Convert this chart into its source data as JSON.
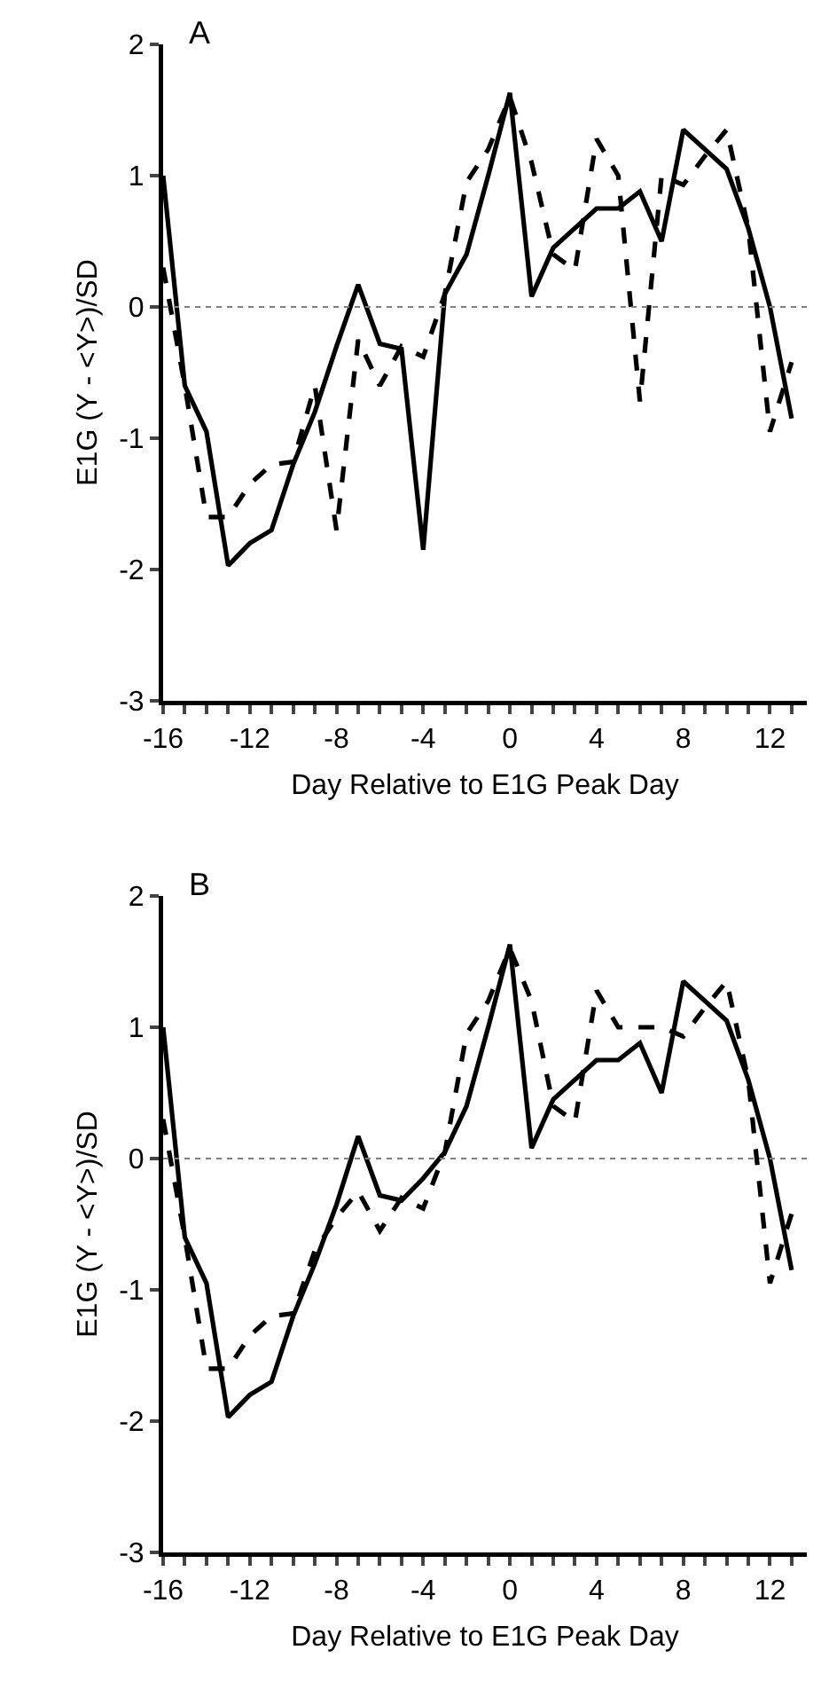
{
  "chart_data": [
    {
      "type": "line",
      "title": "A",
      "xlabel": "Day Relative to E1G Peak Day",
      "ylabel": "E1G (Y - <Y>)/SD",
      "x": [
        -16,
        -15,
        -14,
        -13,
        -12,
        -11,
        -10,
        -9,
        -8,
        -7,
        -6,
        -5,
        -4,
        -3,
        -2,
        -1,
        0,
        1,
        2,
        3,
        4,
        5,
        6,
        7,
        8,
        9,
        10,
        11,
        12,
        13
      ],
      "series": [
        {
          "color": "#000000",
          "line_style": "solid",
          "values": [
            1.0,
            -0.6,
            -0.95,
            -1.97,
            -1.8,
            -1.7,
            -1.2,
            -0.8,
            -0.3,
            0.17,
            -0.28,
            -0.32,
            -1.85,
            0.1,
            0.4,
            1.0,
            1.63,
            0.08,
            0.45,
            0.6,
            0.75,
            0.75,
            0.88,
            0.5,
            1.35,
            1.2,
            1.05,
            0.6,
            0.0,
            -0.85
          ]
        },
        {
          "color": "#000000",
          "line_style": "dashed",
          "values": [
            0.3,
            -0.6,
            -1.6,
            -1.6,
            -1.35,
            -1.2,
            -1.18,
            -0.6,
            -1.7,
            -0.25,
            -0.6,
            -0.3,
            -0.38,
            0.1,
            0.95,
            1.2,
            1.6,
            1.1,
            0.4,
            0.28,
            1.28,
            1.0,
            -0.72,
            1.0,
            0.93,
            1.15,
            1.35,
            0.6,
            -0.95,
            -0.42
          ]
        }
      ],
      "xlim": [
        -16,
        13.7
      ],
      "ylim": [
        -3,
        2
      ],
      "xticks": [
        -16,
        {
          "value": -15,
          "label": null
        },
        {
          "value": -14,
          "label": null
        },
        {
          "value": -13,
          "label": null
        },
        -12,
        {
          "value": -11,
          "label": null
        },
        {
          "value": -10,
          "label": null
        },
        {
          "value": -9,
          "label": null
        },
        -8,
        {
          "value": -7,
          "label": null
        },
        {
          "value": -6,
          "label": null
        },
        {
          "value": -5,
          "label": null
        },
        -4,
        {
          "value": -3,
          "label": null
        },
        {
          "value": -2,
          "label": null
        },
        {
          "value": -1,
          "label": null
        },
        0,
        {
          "value": 1,
          "label": null
        },
        {
          "value": 2,
          "label": null
        },
        {
          "value": 3,
          "label": null
        },
        4,
        {
          "value": 5,
          "label": null
        },
        {
          "value": 6,
          "label": null
        },
        {
          "value": 7,
          "label": null
        },
        8,
        {
          "value": 9,
          "label": null
        },
        {
          "value": 10,
          "label": null
        },
        {
          "value": 11,
          "label": null
        },
        12,
        {
          "value": 13,
          "label": null
        }
      ],
      "yticks": [
        -3,
        -2,
        -1,
        0,
        1,
        2
      ],
      "ref_lines": [
        {
          "axis": "y",
          "value": 0,
          "color": "#808080",
          "line_style": "dotted"
        }
      ],
      "grid": false,
      "marker": "none"
    },
    {
      "type": "line",
      "title": "B",
      "xlabel": "Day Relative to E1G Peak Day",
      "ylabel": "E1G (Y - <Y>)/SD",
      "x": [
        -16,
        -15,
        -14,
        -13,
        -12,
        -11,
        -10,
        -9,
        -8,
        -7,
        -6,
        -5,
        -4,
        -3,
        -2,
        -1,
        0,
        1,
        2,
        3,
        4,
        5,
        6,
        7,
        8,
        9,
        10,
        11,
        12,
        13
      ],
      "series": [
        {
          "color": "#000000",
          "line_style": "solid",
          "values": [
            1.0,
            -0.6,
            -0.95,
            -1.97,
            -1.8,
            -1.7,
            -1.2,
            -0.8,
            -0.35,
            0.17,
            -0.28,
            -0.32,
            -0.15,
            0.05,
            0.4,
            1.0,
            1.63,
            0.08,
            0.45,
            0.6,
            0.75,
            0.75,
            0.88,
            0.5,
            1.35,
            1.2,
            1.05,
            0.6,
            0.0,
            -0.85
          ]
        },
        {
          "color": "#000000",
          "line_style": "dashed",
          "values": [
            0.3,
            -0.6,
            -1.6,
            -1.6,
            -1.35,
            -1.2,
            -1.18,
            -0.7,
            -0.45,
            -0.25,
            -0.55,
            -0.3,
            -0.38,
            0.05,
            0.95,
            1.2,
            1.6,
            1.2,
            0.4,
            0.28,
            1.28,
            1.0,
            1.0,
            1.0,
            0.93,
            1.15,
            1.35,
            0.6,
            -0.95,
            -0.42
          ]
        }
      ],
      "xlim": [
        -16,
        13.7
      ],
      "ylim": [
        -3,
        2
      ],
      "xticks": [
        -16,
        {
          "value": -15,
          "label": null
        },
        {
          "value": -14,
          "label": null
        },
        {
          "value": -13,
          "label": null
        },
        -12,
        {
          "value": -11,
          "label": null
        },
        {
          "value": -10,
          "label": null
        },
        {
          "value": -9,
          "label": null
        },
        -8,
        {
          "value": -7,
          "label": null
        },
        {
          "value": -6,
          "label": null
        },
        {
          "value": -5,
          "label": null
        },
        -4,
        {
          "value": -3,
          "label": null
        },
        {
          "value": -2,
          "label": null
        },
        {
          "value": -1,
          "label": null
        },
        0,
        {
          "value": 1,
          "label": null
        },
        {
          "value": 2,
          "label": null
        },
        {
          "value": 3,
          "label": null
        },
        4,
        {
          "value": 5,
          "label": null
        },
        {
          "value": 6,
          "label": null
        },
        {
          "value": 7,
          "label": null
        },
        8,
        {
          "value": 9,
          "label": null
        },
        {
          "value": 10,
          "label": null
        },
        {
          "value": 11,
          "label": null
        },
        12,
        {
          "value": 13,
          "label": null
        }
      ],
      "yticks": [
        -3,
        -2,
        -1,
        0,
        1,
        2
      ],
      "ref_lines": [
        {
          "axis": "y",
          "value": 0,
          "color": "#808080",
          "line_style": "dotted"
        }
      ],
      "grid": false,
      "marker": "none"
    }
  ]
}
